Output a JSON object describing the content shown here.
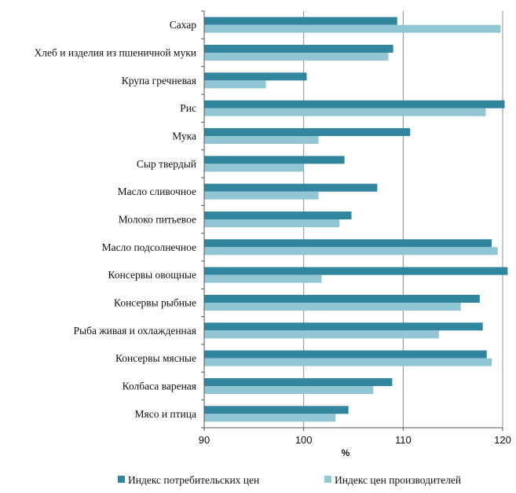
{
  "chart_data": {
    "type": "bar",
    "orientation": "horizontal",
    "categories": [
      "Сахар",
      "Хлеб и изделия из пшеничной муки",
      "Крупа гречневая",
      "Рис",
      "Мука",
      "Сыр твердый",
      "Масло сливочное",
      "Молоко питьевое",
      "Масло подсолнечное",
      "Консервы овощные",
      "Консервы рыбные",
      "Рыба живая и охлажденная",
      "Консервы мясные",
      "Колбаса вареная",
      "Мясо и птица"
    ],
    "series": [
      {
        "name": "Индекс потребительских цен",
        "color": "#31859c",
        "values": [
          109.4,
          109.0,
          100.3,
          120.2,
          110.7,
          104.1,
          107.4,
          104.8,
          118.9,
          120.5,
          117.7,
          118.0,
          118.4,
          108.9,
          104.5
        ]
      },
      {
        "name": "Индекс цен производителей",
        "color": "#93c6d4",
        "values": [
          119.8,
          108.5,
          96.2,
          118.3,
          101.5,
          100.0,
          101.5,
          103.6,
          119.5,
          101.8,
          115.8,
          113.6,
          118.9,
          107.0,
          103.2
        ]
      }
    ],
    "xlim": [
      90,
      120
    ],
    "xticks": [
      90,
      100,
      110,
      120
    ],
    "xlabel": "%",
    "grid": "vertical",
    "legend": "bottom"
  }
}
